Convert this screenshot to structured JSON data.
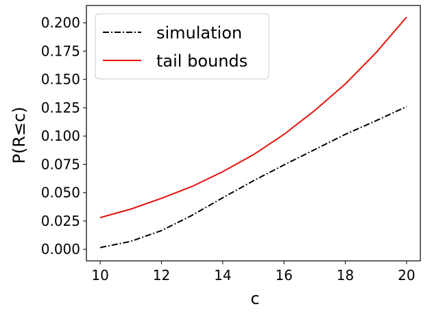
{
  "chart_data": {
    "type": "line",
    "xlabel": "c",
    "ylabel": "P(R≤c)",
    "xlim": [
      9.55,
      20.45
    ],
    "ylim": [
      -0.0102,
      0.2153
    ],
    "x_ticks": [
      10,
      12,
      14,
      16,
      18,
      20
    ],
    "x_tick_labels": [
      "10",
      "12",
      "14",
      "16",
      "18",
      "20"
    ],
    "y_ticks": [
      0.0,
      0.025,
      0.05,
      0.075,
      0.1,
      0.125,
      0.15,
      0.175,
      0.2
    ],
    "y_tick_labels": [
      "0.000",
      "0.025",
      "0.050",
      "0.075",
      "0.100",
      "0.125",
      "0.150",
      "0.175",
      "0.200"
    ],
    "grid": false,
    "legend_position": "upper-left",
    "x": [
      10,
      11,
      12,
      13,
      14,
      15,
      16,
      17,
      18,
      19,
      20
    ],
    "series": [
      {
        "name": "simulation",
        "color": "#000000",
        "style": "dash-dot",
        "values": [
          0.0015,
          0.007,
          0.0165,
          0.03,
          0.0455,
          0.0605,
          0.0745,
          0.088,
          0.1015,
          0.1135,
          0.126
        ]
      },
      {
        "name": "tail bounds",
        "color": "#e8120c",
        "style": "solid",
        "values": [
          0.028,
          0.0355,
          0.045,
          0.0555,
          0.0685,
          0.0835,
          0.1015,
          0.1225,
          0.146,
          0.1735,
          0.205
        ]
      }
    ]
  }
}
